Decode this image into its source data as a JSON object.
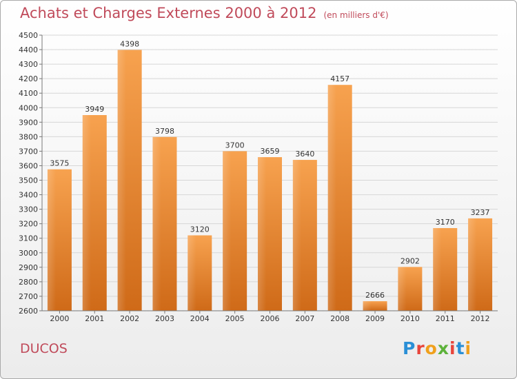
{
  "title": "Achats et Charges Externes 2000 à 2012",
  "unit_note": "(en milliers d'€)",
  "commune": "DUCOS",
  "logo_text": "Proxiti",
  "colors": {
    "bar_light": "#f7a24f",
    "bar_dark": "#cf6a18",
    "title": "#c04a5a"
  },
  "chart_data": {
    "type": "bar",
    "title": "Achats et Charges Externes 2000 à 2012",
    "ylabel": "",
    "xlabel": "",
    "categories": [
      "2000",
      "2001",
      "2002",
      "2003",
      "2004",
      "2005",
      "2006",
      "2007",
      "2008",
      "2009",
      "2010",
      "2011",
      "2012"
    ],
    "values": [
      3575,
      3949,
      4398,
      3798,
      3120,
      3700,
      3659,
      3640,
      4157,
      2666,
      2902,
      3170,
      3237
    ],
    "ylim": [
      2600,
      4500
    ],
    "ytick_step": 100,
    "grid": true
  }
}
